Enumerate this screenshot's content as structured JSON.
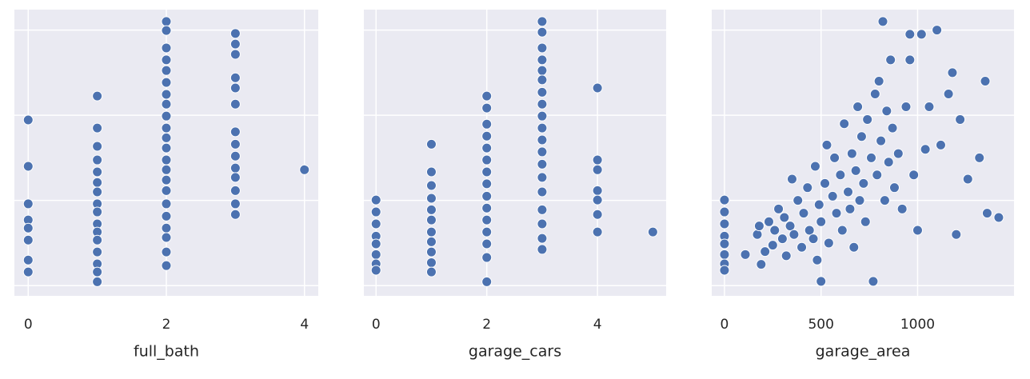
{
  "chart_data": [
    {
      "type": "scatter",
      "xlabel": "full_bath",
      "color": "#4c72b0",
      "grid": true,
      "xlim": [
        -0.2,
        4.2
      ],
      "xticks": [
        0,
        2,
        4
      ],
      "ylim": [
        -24000,
        648000
      ],
      "yticks": [
        0,
        200000,
        400000,
        600000
      ],
      "x": [
        0,
        0,
        0,
        0,
        0,
        0,
        0,
        0,
        1,
        1,
        1,
        1,
        1,
        1,
        1,
        1,
        1,
        1,
        1,
        1,
        1,
        1,
        1,
        1,
        2,
        2,
        2,
        2,
        2,
        2,
        2,
        2,
        2,
        2,
        2,
        2,
        2,
        2,
        2,
        2,
        2,
        2,
        2,
        2,
        2,
        2,
        3,
        3,
        3,
        3,
        3,
        3,
        3,
        3,
        3,
        3,
        3,
        3,
        3,
        3,
        4
      ],
      "values": [
        389000,
        280000,
        192000,
        154000,
        135000,
        107000,
        60000,
        32000,
        445000,
        370000,
        327000,
        295000,
        267000,
        242000,
        220000,
        192000,
        173000,
        145000,
        126000,
        107000,
        79000,
        51000,
        32000,
        9000,
        620000,
        599000,
        558000,
        530000,
        505000,
        477000,
        449000,
        426000,
        398000,
        370000,
        347000,
        323000,
        295000,
        272000,
        248000,
        223000,
        192000,
        163000,
        135000,
        113000,
        79000,
        47000,
        592000,
        567000,
        543000,
        488000,
        464000,
        426000,
        361000,
        332000,
        304000,
        276000,
        254000,
        223000,
        192000,
        167000,
        272000
      ]
    },
    {
      "type": "scatter",
      "xlabel": "garage_cars",
      "color": "#4c72b0",
      "grid": true,
      "xlim": [
        -0.22,
        5.24
      ],
      "xticks": [
        0,
        2,
        4
      ],
      "ylim": [
        -24000,
        648000
      ],
      "yticks": [
        0,
        200000,
        400000,
        600000
      ],
      "x": [
        0,
        0,
        0,
        0,
        0,
        0,
        0,
        0,
        1,
        1,
        1,
        1,
        1,
        1,
        1,
        1,
        1,
        1,
        1,
        2,
        2,
        2,
        2,
        2,
        2,
        2,
        2,
        2,
        2,
        2,
        2,
        2,
        2,
        2,
        3,
        3,
        3,
        3,
        3,
        3,
        3,
        3,
        3,
        3,
        3,
        3,
        3,
        3,
        3,
        3,
        3,
        3,
        3,
        4,
        4,
        4,
        4,
        4,
        4,
        4,
        5
      ],
      "values": [
        201000,
        173000,
        145000,
        116000,
        98000,
        73000,
        51000,
        36000,
        332000,
        267000,
        235000,
        205000,
        178000,
        154000,
        126000,
        103000,
        79000,
        54000,
        32000,
        445000,
        417000,
        379000,
        351000,
        323000,
        295000,
        267000,
        239000,
        210000,
        182000,
        154000,
        126000,
        98000,
        66000,
        9000,
        620000,
        595000,
        558000,
        530000,
        505000,
        483000,
        454000,
        426000,
        398000,
        370000,
        342000,
        314000,
        285000,
        254000,
        220000,
        178000,
        145000,
        111000,
        85000,
        464000,
        295000,
        272000,
        223000,
        201000,
        167000,
        126000,
        126000
      ]
    },
    {
      "type": "scatter",
      "xlabel": "garage_area",
      "color": "#4c72b0",
      "grid": true,
      "xlim": [
        -66,
        1499
      ],
      "xticks": [
        0,
        500,
        1000
      ],
      "ylim": [
        -24000,
        648000
      ],
      "yticks": [
        0,
        200000,
        400000,
        600000
      ],
      "x": [
        0,
        0,
        0,
        0,
        0,
        0,
        0,
        0,
        108,
        170,
        180,
        190,
        210,
        230,
        250,
        260,
        280,
        300,
        310,
        320,
        340,
        350,
        360,
        380,
        400,
        410,
        430,
        440,
        460,
        470,
        480,
        490,
        500,
        500,
        520,
        530,
        540,
        560,
        570,
        580,
        600,
        610,
        620,
        640,
        650,
        660,
        670,
        680,
        690,
        700,
        710,
        720,
        730,
        740,
        760,
        770,
        780,
        790,
        800,
        810,
        820,
        830,
        840,
        850,
        860,
        870,
        880,
        900,
        920,
        940,
        960,
        960,
        980,
        1000,
        1020,
        1040,
        1060,
        1100,
        1120,
        1160,
        1180,
        1200,
        1220,
        1260,
        1320,
        1350,
        1360,
        1420
      ],
      "values": [
        201000,
        173000,
        145000,
        116000,
        98000,
        73000,
        51000,
        36000,
        73000,
        120000,
        140000,
        50000,
        80000,
        150000,
        95000,
        130000,
        180000,
        110000,
        160000,
        70000,
        140000,
        250000,
        120000,
        200000,
        90000,
        170000,
        230000,
        130000,
        110000,
        280000,
        60000,
        190000,
        150000,
        10000,
        240000,
        330000,
        100000,
        210000,
        300000,
        170000,
        260000,
        130000,
        380000,
        220000,
        180000,
        310000,
        90000,
        270000,
        420000,
        200000,
        350000,
        240000,
        150000,
        390000,
        300000,
        10000,
        450000,
        260000,
        480000,
        340000,
        620000,
        200000,
        410000,
        290000,
        530000,
        370000,
        230000,
        310000,
        180000,
        420000,
        530000,
        590000,
        260000,
        130000,
        590000,
        320000,
        420000,
        600000,
        330000,
        450000,
        500000,
        120000,
        390000,
        250000,
        300000,
        480000,
        170000,
        160000
      ]
    }
  ]
}
